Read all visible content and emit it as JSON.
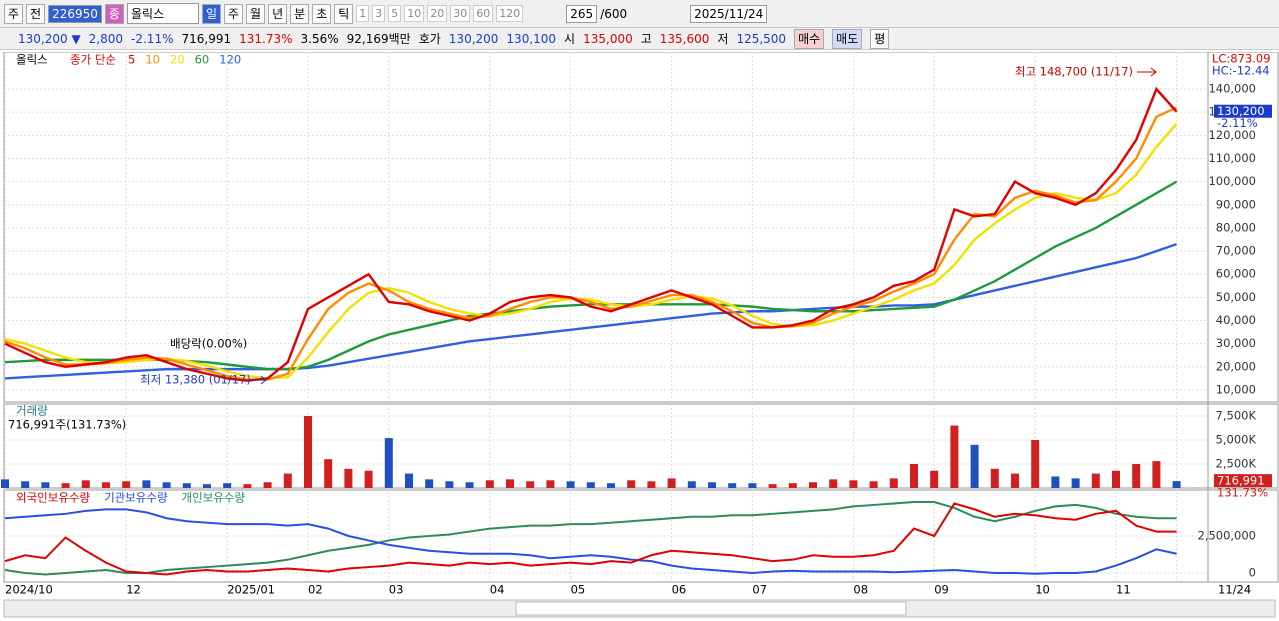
{
  "toolbar": {
    "row1": [
      "주",
      "전",
      "226950",
      "종",
      "올릭스",
      "일",
      "주",
      "월",
      "년",
      "분",
      "초",
      "틱",
      "1",
      "3",
      "5",
      "10",
      "20",
      "30",
      "60",
      "120",
      "265",
      "/600",
      "2025/11/24"
    ],
    "row2": [
      "130,200 ▼",
      "2,800",
      "-2.11%",
      "716,991",
      "131.73%",
      "3.56%",
      "92,169백만",
      "호가",
      "130,200",
      "130,100",
      "시",
      "135,000",
      "고",
      "135,600",
      "저",
      "125,500",
      "매수",
      "매도",
      "평"
    ]
  },
  "chart_data": [
    {
      "type": "line",
      "title": "올릭스",
      "legend_prefix": "종가 단순",
      "grid": true,
      "lc": "LC:873.09",
      "hc": "HC:-12.44",
      "categories": [
        "2024/10",
        null,
        null,
        null,
        null,
        null,
        "12",
        null,
        null,
        null,
        null,
        "2025/01",
        null,
        null,
        null,
        "02",
        null,
        null,
        null,
        "03",
        null,
        null,
        null,
        null,
        "04",
        null,
        null,
        null,
        "05",
        null,
        null,
        null,
        null,
        "06",
        null,
        null,
        null,
        "07",
        null,
        null,
        null,
        null,
        "08",
        null,
        null,
        null,
        "09",
        null,
        null,
        null,
        null,
        "10",
        null,
        null,
        null,
        "11",
        null,
        null,
        "11/24"
      ],
      "ylim": [
        4800,
        156000
      ],
      "yticks": [
        {
          "value": 10000,
          "label": "10,000"
        },
        {
          "value": 20000,
          "label": "20,000"
        },
        {
          "value": 30000,
          "label": "30,000"
        },
        {
          "value": 40000,
          "label": "40,000"
        },
        {
          "value": 50000,
          "label": "50,000"
        },
        {
          "value": 60000,
          "label": "60,000"
        },
        {
          "value": 70000,
          "label": "70,000"
        },
        {
          "value": 80000,
          "label": "80,000"
        },
        {
          "value": 90000,
          "label": "90,000"
        },
        {
          "value": 100000,
          "label": "100,000"
        },
        {
          "value": 110000,
          "label": "110,000"
        },
        {
          "value": 120000,
          "label": "120,000"
        },
        {
          "value": 130000,
          "label": "130,000"
        },
        {
          "value": 140000,
          "label": "140,000"
        }
      ],
      "series": [
        {
          "name": "5",
          "color": "#e00000",
          "values": [
            30000,
            26000,
            22000,
            20000,
            21000,
            22000,
            24000,
            25000,
            22000,
            19000,
            17000,
            15000,
            14000,
            15000,
            22000,
            45000,
            50000,
            55000,
            60000,
            48000,
            47000,
            44000,
            42000,
            40000,
            43000,
            48000,
            50000,
            51000,
            50000,
            46000,
            44000,
            47000,
            50000,
            53000,
            50000,
            47000,
            42000,
            37000,
            37000,
            38000,
            40000,
            45000,
            47000,
            50000,
            55000,
            57000,
            62000,
            88000,
            85000,
            86000,
            100000,
            95000,
            93000,
            90000,
            95000,
            105000,
            118000,
            140000,
            130200
          ]
        },
        {
          "name": "10",
          "color": "#ff8c00",
          "values": [
            31000,
            28000,
            24000,
            21000,
            21000,
            21500,
            23000,
            24000,
            23500,
            21000,
            18500,
            16000,
            14500,
            14500,
            17000,
            32000,
            45000,
            52000,
            56000,
            53000,
            48000,
            45000,
            43000,
            41000,
            42000,
            45000,
            48000,
            50000,
            50000,
            48000,
            45000,
            46000,
            48500,
            51000,
            51000,
            48000,
            44000,
            39000,
            37000,
            37500,
            39000,
            43000,
            46000,
            48500,
            52500,
            56000,
            60000,
            75000,
            86000,
            85000,
            93000,
            96000,
            94000,
            91000,
            92000,
            100000,
            110000,
            128000,
            132000
          ]
        },
        {
          "name": "20",
          "color": "#f2e000",
          "values": [
            32000,
            30000,
            27000,
            24000,
            22000,
            21500,
            22000,
            23000,
            23500,
            22500,
            20500,
            18000,
            16000,
            15000,
            15500,
            24000,
            35000,
            45000,
            52000,
            54000,
            52000,
            48000,
            45000,
            43000,
            42000,
            43000,
            45000,
            48000,
            49500,
            49000,
            47000,
            46000,
            47000,
            49000,
            50500,
            49500,
            46500,
            42000,
            38500,
            37500,
            38000,
            40000,
            43000,
            46000,
            49000,
            53000,
            56000,
            64000,
            75000,
            82000,
            88000,
            93000,
            95000,
            93000,
            92000,
            95000,
            103000,
            115000,
            125000
          ]
        },
        {
          "name": "60",
          "color": "#1e9a3c",
          "values": [
            22000,
            22500,
            23000,
            23000,
            23000,
            23000,
            23000,
            23000,
            23000,
            22500,
            22000,
            21000,
            20000,
            19000,
            19000,
            20000,
            23000,
            27000,
            31000,
            34000,
            36000,
            38000,
            40000,
            42000,
            43000,
            44000,
            45000,
            46000,
            46500,
            47000,
            47000,
            47000,
            47000,
            47000,
            47000,
            47000,
            46500,
            46000,
            45000,
            44500,
            44000,
            44000,
            44000,
            44500,
            45000,
            45500,
            46000,
            49000,
            53000,
            57000,
            62000,
            67000,
            72000,
            76000,
            80000,
            85000,
            90000,
            95000,
            100000
          ]
        },
        {
          "name": "120",
          "color": "#3060e0",
          "values": [
            15000,
            15500,
            16000,
            16500,
            17000,
            17500,
            18000,
            18500,
            19000,
            19000,
            19000,
            19000,
            19000,
            19000,
            19000,
            19500,
            20500,
            22000,
            23500,
            25000,
            26500,
            28000,
            29500,
            31000,
            32000,
            33000,
            34000,
            35000,
            36000,
            37000,
            38000,
            39000,
            40000,
            41000,
            42000,
            43000,
            43500,
            44000,
            44000,
            44500,
            45000,
            45500,
            46000,
            46000,
            46500,
            46500,
            47000,
            49000,
            51000,
            53000,
            55000,
            57000,
            59000,
            61000,
            63000,
            65000,
            67000,
            70000,
            73000
          ]
        }
      ],
      "annotations": {
        "high": "최고 148,700 (11/17)",
        "low": "최저 13,380 (01/17)",
        "ex_dividend": "배당락(0.00%)"
      },
      "last_label": "130,200",
      "last_change": "-2.11%"
    },
    {
      "type": "bar",
      "title": "거래량",
      "subtitle": "716,991주(131.73%)",
      "ylim": [
        0,
        8750000
      ],
      "yticks": [
        {
          "value": 2500000,
          "label": "2,500K"
        },
        {
          "value": 5000000,
          "label": "5,000K"
        },
        {
          "value": 7500000,
          "label": "7,500K"
        }
      ],
      "values": [
        900000,
        700000,
        600000,
        500000,
        800000,
        600000,
        700000,
        800000,
        600000,
        500000,
        400000,
        500000,
        400000,
        600000,
        1500000,
        7500000,
        3000000,
        2000000,
        1800000,
        5200000,
        1500000,
        900000,
        700000,
        600000,
        800000,
        900000,
        700000,
        800000,
        700000,
        600000,
        500000,
        800000,
        700000,
        1000000,
        700000,
        600000,
        500000,
        500000,
        400000,
        500000,
        600000,
        900000,
        800000,
        700000,
        1000000,
        2500000,
        1800000,
        6500000,
        4500000,
        2000000,
        1500000,
        5000000,
        1200000,
        1000000,
        1500000,
        1800000,
        2500000,
        2800000,
        716991
      ],
      "bar_colors": [
        "#2050c0",
        "#2050c0",
        "#2050c0",
        "#d02020",
        "#d02020",
        "#d02020",
        "#d02020",
        "#2050c0",
        "#2050c0",
        "#2050c0",
        "#2050c0",
        "#2050c0",
        "#d02020",
        "#d02020",
        "#d02020",
        "#d02020",
        "#d02020",
        "#d02020",
        "#d02020",
        "#2050c0",
        "#2050c0",
        "#2050c0",
        "#2050c0",
        "#2050c0",
        "#d02020",
        "#d02020",
        "#d02020",
        "#d02020",
        "#2050c0",
        "#2050c0",
        "#2050c0",
        "#d02020",
        "#d02020",
        "#d02020",
        "#2050c0",
        "#2050c0",
        "#2050c0",
        "#2050c0",
        "#d02020",
        "#d02020",
        "#d02020",
        "#d02020",
        "#d02020",
        "#d02020",
        "#d02020",
        "#d02020",
        "#d02020",
        "#d02020",
        "#2050c0",
        "#d02020",
        "#d02020",
        "#d02020",
        "#2050c0",
        "#2050c0",
        "#d02020",
        "#d02020",
        "#d02020",
        "#d02020",
        "#2050c0"
      ],
      "last_label": "716,991",
      "last_ratio": "131.73%"
    },
    {
      "type": "line",
      "ylim": [
        -610000,
        5610000
      ],
      "yticks": [
        0,
        {
          "value": 2500000,
          "label": "2,500,000"
        }
      ],
      "series": [
        {
          "name": "외국인보유수량",
          "color": "#e00000",
          "values": [
            800000,
            1200000,
            1000000,
            2400000,
            1500000,
            700000,
            100000,
            0,
            -100000,
            100000,
            200000,
            100000,
            100000,
            200000,
            300000,
            200000,
            100000,
            300000,
            400000,
            500000,
            700000,
            600000,
            500000,
            700000,
            600000,
            700000,
            500000,
            600000,
            700000,
            600000,
            800000,
            700000,
            1200000,
            1500000,
            1400000,
            1300000,
            1200000,
            1000000,
            800000,
            900000,
            1200000,
            1100000,
            1100000,
            1200000,
            1500000,
            3000000,
            2500000,
            4700000,
            4300000,
            3800000,
            4000000,
            3900000,
            3700000,
            3600000,
            4000000,
            4200000,
            3200000,
            2800000,
            2800000
          ]
        },
        {
          "name": "기관보유수량",
          "color": "#2a4ee0",
          "values": [
            3700000,
            3800000,
            3900000,
            4000000,
            4200000,
            4300000,
            4300000,
            4100000,
            3700000,
            3500000,
            3400000,
            3300000,
            3300000,
            3300000,
            3200000,
            3300000,
            3000000,
            2500000,
            2200000,
            1900000,
            1700000,
            1500000,
            1400000,
            1300000,
            1300000,
            1300000,
            1200000,
            1000000,
            1100000,
            1200000,
            1100000,
            900000,
            800000,
            500000,
            300000,
            200000,
            100000,
            0,
            100000,
            150000,
            100000,
            100000,
            100000,
            100000,
            50000,
            100000,
            150000,
            200000,
            100000,
            0,
            0,
            -50000,
            0,
            0,
            100000,
            500000,
            1000000,
            1600000,
            1300000
          ]
        },
        {
          "name": "개인보유수량",
          "color": "#2e8b57",
          "values": [
            200000,
            0,
            -100000,
            0,
            100000,
            200000,
            0,
            0,
            200000,
            300000,
            400000,
            500000,
            600000,
            700000,
            900000,
            1200000,
            1500000,
            1700000,
            1900000,
            2200000,
            2400000,
            2500000,
            2600000,
            2800000,
            3000000,
            3100000,
            3200000,
            3200000,
            3300000,
            3300000,
            3400000,
            3500000,
            3600000,
            3700000,
            3800000,
            3800000,
            3900000,
            3900000,
            4000000,
            4100000,
            4200000,
            4300000,
            4500000,
            4600000,
            4700000,
            4800000,
            4800000,
            4400000,
            3800000,
            3500000,
            3800000,
            4200000,
            4500000,
            4600000,
            4400000,
            4000000,
            3800000,
            3700000,
            3700000
          ]
        }
      ]
    }
  ]
}
